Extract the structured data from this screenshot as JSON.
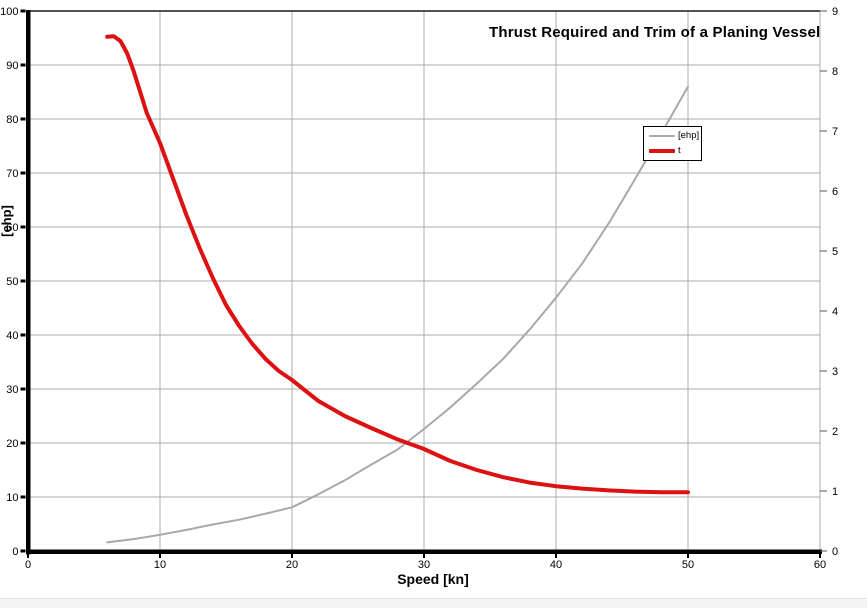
{
  "chart_data": {
    "type": "line",
    "title": "Thrust Required and Trim of a Planing Vessel",
    "xlabel": "Speed [kn]",
    "ylabel_left": "[ehp]",
    "xlim": [
      0,
      60
    ],
    "ylim_left": [
      0,
      100
    ],
    "ylim_right": [
      0,
      9
    ],
    "x_ticks": [
      0,
      10,
      20,
      30,
      40,
      50,
      60
    ],
    "y_ticks_left": [
      0,
      10,
      20,
      30,
      40,
      50,
      60,
      70,
      80,
      90,
      100
    ],
    "y_ticks_right": [
      0,
      1,
      2,
      3,
      4,
      5,
      6,
      7,
      8,
      9
    ],
    "grid": true,
    "legend": {
      "position": "upper-right-inside",
      "entries": [
        "[ehp]",
        "t"
      ]
    },
    "colors": {
      "grid": "#adadad",
      "axis": "#000000",
      "right_axis": "#999999",
      "text": "#000000"
    },
    "series": [
      {
        "name": "[ehp]",
        "axis": "left",
        "color": "#a8a8a8",
        "width": 2,
        "points": [
          [
            6,
            1.6
          ],
          [
            8,
            2.2
          ],
          [
            10,
            3.0
          ],
          [
            12,
            3.9
          ],
          [
            14,
            4.9
          ],
          [
            16,
            5.8
          ],
          [
            18,
            6.9
          ],
          [
            20,
            8.1
          ],
          [
            22,
            10.5
          ],
          [
            24,
            13.1
          ],
          [
            26,
            16.0
          ],
          [
            28,
            18.8
          ],
          [
            30,
            22.6
          ],
          [
            32,
            26.6
          ],
          [
            34,
            31.0
          ],
          [
            36,
            35.6
          ],
          [
            38,
            41.0
          ],
          [
            40,
            46.9
          ],
          [
            42,
            53.3
          ],
          [
            44,
            60.7
          ],
          [
            46,
            68.9
          ],
          [
            48,
            77.4
          ],
          [
            50,
            86.0
          ]
        ]
      },
      {
        "name": "t",
        "axis": "right",
        "color": "#dd1111",
        "width": 4,
        "points": [
          [
            6,
            8.57
          ],
          [
            6.5,
            8.58
          ],
          [
            7,
            8.5
          ],
          [
            7.5,
            8.3
          ],
          [
            8,
            8.0
          ],
          [
            8.5,
            7.65
          ],
          [
            9,
            7.3
          ],
          [
            10,
            6.8
          ],
          [
            11,
            6.2
          ],
          [
            12,
            5.6
          ],
          [
            13,
            5.05
          ],
          [
            14,
            4.55
          ],
          [
            15,
            4.1
          ],
          [
            16,
            3.75
          ],
          [
            17,
            3.45
          ],
          [
            18,
            3.2
          ],
          [
            19,
            3.0
          ],
          [
            20,
            2.85
          ],
          [
            22,
            2.5
          ],
          [
            24,
            2.25
          ],
          [
            26,
            2.05
          ],
          [
            28,
            1.86
          ],
          [
            30,
            1.7
          ],
          [
            32,
            1.5
          ],
          [
            34,
            1.35
          ],
          [
            36,
            1.23
          ],
          [
            38,
            1.14
          ],
          [
            40,
            1.08
          ],
          [
            42,
            1.04
          ],
          [
            44,
            1.01
          ],
          [
            46,
            0.99
          ],
          [
            48,
            0.98
          ],
          [
            50,
            0.98
          ]
        ]
      }
    ]
  }
}
